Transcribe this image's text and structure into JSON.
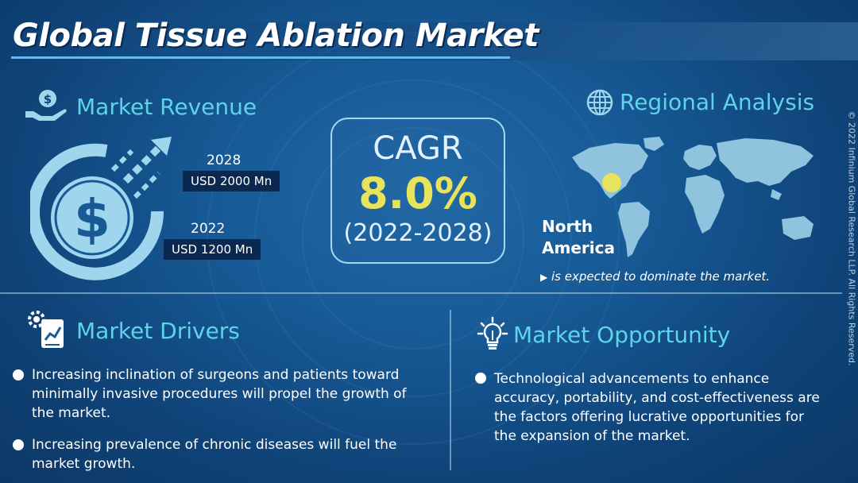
{
  "title": "Global Tissue Ablation Market",
  "market_revenue": {
    "heading": "Market Revenue",
    "entries": [
      {
        "year": "2028",
        "value": "USD 2000 Mn"
      },
      {
        "year": "2022",
        "value": "USD 1200 Mn"
      }
    ]
  },
  "cagr": {
    "label": "CAGR",
    "value": "8.0%",
    "period": "(2022-2028)"
  },
  "regional_analysis": {
    "heading": "Regional Analysis",
    "region_line1": "North",
    "region_line2": "America",
    "note": "is expected to dominate the market."
  },
  "market_drivers": {
    "heading": "Market Drivers",
    "items": [
      "Increasing inclination of surgeons and patients toward minimally invasive procedures will propel the growth of the market.",
      "Increasing prevalence of chronic diseases will fuel the market growth."
    ]
  },
  "market_opportunity": {
    "heading": "Market Opportunity",
    "items": [
      "Technological advancements to enhance accuracy, portability, and cost-effectiveness are the factors offering lucrative opportunities for the expansion of the market."
    ]
  },
  "copyright": "© 2022 Infinium Global Research LLP. All Rights Reserved.",
  "colors": {
    "background": "#175a96",
    "accent_cyan": "#5fd3e8",
    "cagr_yellow": "#e7e35a",
    "label_box": "#0a2850"
  },
  "icons": [
    "money-hand-icon",
    "dollar-growth-icon",
    "globe-icon",
    "gear-chart-icon",
    "lightbulb-icon",
    "world-map-icon"
  ]
}
